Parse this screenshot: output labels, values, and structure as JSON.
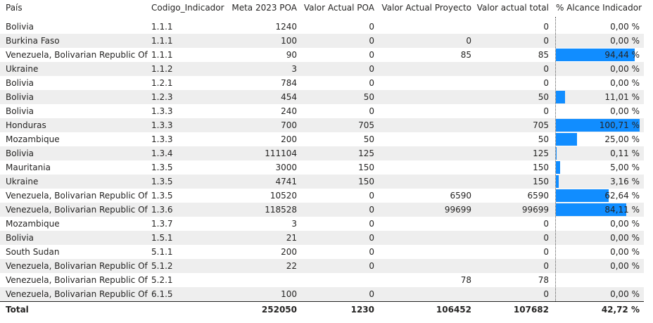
{
  "headers": {
    "pais": "País",
    "codigo": "Codigo_Indicador",
    "meta": "Meta 2023 POA",
    "valor_poa": "Valor Actual POA",
    "valor_proyecto": "Valor Actual Proyecto",
    "valor_total": "Valor actual total",
    "alcance": "% Alcance Indicador"
  },
  "rows": [
    {
      "pais": "Bolivia",
      "codigo": "1.1.1",
      "meta": "1240",
      "poa": "0",
      "proyecto": "",
      "total": "0",
      "alcance": "0,00 %",
      "pct": 0
    },
    {
      "pais": "Burkina Faso",
      "codigo": "1.1.1",
      "meta": "100",
      "poa": "0",
      "proyecto": "0",
      "total": "0",
      "alcance": "0,00 %",
      "pct": 0
    },
    {
      "pais": "Venezuela, Bolivarian Republic Of",
      "codigo": "1.1.1",
      "meta": "90",
      "poa": "0",
      "proyecto": "85",
      "total": "85",
      "alcance": "94,44 %",
      "pct": 94.44
    },
    {
      "pais": "Ukraine",
      "codigo": "1.1.2",
      "meta": "3",
      "poa": "0",
      "proyecto": "",
      "total": "0",
      "alcance": "0,00 %",
      "pct": 0
    },
    {
      "pais": "Bolivia",
      "codigo": "1.2.1",
      "meta": "784",
      "poa": "0",
      "proyecto": "",
      "total": "0",
      "alcance": "0,00 %",
      "pct": 0
    },
    {
      "pais": "Bolivia",
      "codigo": "1.2.3",
      "meta": "454",
      "poa": "50",
      "proyecto": "",
      "total": "50",
      "alcance": "11,01 %",
      "pct": 11.01
    },
    {
      "pais": "Bolivia",
      "codigo": "1.3.3",
      "meta": "240",
      "poa": "0",
      "proyecto": "",
      "total": "0",
      "alcance": "0,00 %",
      "pct": 0
    },
    {
      "pais": "Honduras",
      "codigo": "1.3.3",
      "meta": "700",
      "poa": "705",
      "proyecto": "",
      "total": "705",
      "alcance": "100,71 %",
      "pct": 100.71
    },
    {
      "pais": "Mozambique",
      "codigo": "1.3.3",
      "meta": "200",
      "poa": "50",
      "proyecto": "",
      "total": "50",
      "alcance": "25,00 %",
      "pct": 25
    },
    {
      "pais": "Bolivia",
      "codigo": "1.3.4",
      "meta": "111104",
      "poa": "125",
      "proyecto": "",
      "total": "125",
      "alcance": "0,11 %",
      "pct": 0.11
    },
    {
      "pais": "Mauritania",
      "codigo": "1.3.5",
      "meta": "3000",
      "poa": "150",
      "proyecto": "",
      "total": "150",
      "alcance": "5,00 %",
      "pct": 5
    },
    {
      "pais": "Ukraine",
      "codigo": "1.3.5",
      "meta": "4741",
      "poa": "150",
      "proyecto": "",
      "total": "150",
      "alcance": "3,16 %",
      "pct": 3.16
    },
    {
      "pais": "Venezuela, Bolivarian Republic Of",
      "codigo": "1.3.5",
      "meta": "10520",
      "poa": "0",
      "proyecto": "6590",
      "total": "6590",
      "alcance": "62,64 %",
      "pct": 62.64
    },
    {
      "pais": "Venezuela, Bolivarian Republic Of",
      "codigo": "1.3.6",
      "meta": "118528",
      "poa": "0",
      "proyecto": "99699",
      "total": "99699",
      "alcance": "84,11 %",
      "pct": 84.11
    },
    {
      "pais": "Mozambique",
      "codigo": "1.3.7",
      "meta": "3",
      "poa": "0",
      "proyecto": "",
      "total": "0",
      "alcance": "0,00 %",
      "pct": 0
    },
    {
      "pais": "Bolivia",
      "codigo": "1.5.1",
      "meta": "21",
      "poa": "0",
      "proyecto": "",
      "total": "0",
      "alcance": "0,00 %",
      "pct": 0
    },
    {
      "pais": "South Sudan",
      "codigo": "5.1.1",
      "meta": "200",
      "poa": "0",
      "proyecto": "",
      "total": "0",
      "alcance": "0,00 %",
      "pct": 0
    },
    {
      "pais": "Venezuela, Bolivarian Republic Of",
      "codigo": "5.1.2",
      "meta": "22",
      "poa": "0",
      "proyecto": "",
      "total": "0",
      "alcance": "0,00 %",
      "pct": 0
    },
    {
      "pais": "Venezuela, Bolivarian Republic Of",
      "codigo": "5.2.1",
      "meta": "",
      "poa": "",
      "proyecto": "78",
      "total": "78",
      "alcance": "",
      "pct": 0
    },
    {
      "pais": "Venezuela, Bolivarian Republic Of",
      "codigo": "6.1.5",
      "meta": "100",
      "poa": "0",
      "proyecto": "",
      "total": "0",
      "alcance": "0,00 %",
      "pct": 0
    }
  ],
  "total": {
    "label": "Total",
    "meta": "252050",
    "poa": "1230",
    "proyecto": "106452",
    "total": "107682",
    "alcance": "42,72 %"
  },
  "bar_color": "#118DFF"
}
